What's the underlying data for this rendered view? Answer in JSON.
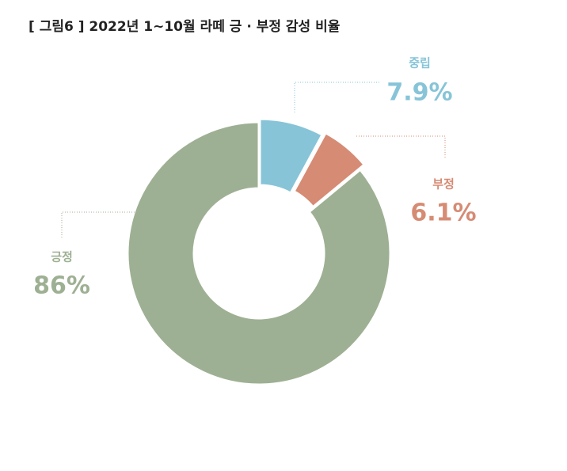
{
  "chart_data": {
    "type": "donut",
    "title": "[ 그림6 ] 2022년 1~10월 라떼 긍 · 부정 감성 비율",
    "categories": [
      "중립",
      "부정",
      "긍정"
    ],
    "values": [
      7.9,
      6.1,
      86
    ],
    "value_labels": [
      "7.9%",
      "6.1%",
      "86%"
    ],
    "colors": [
      "#87c4d8",
      "#d68b74",
      "#9eb093"
    ]
  }
}
